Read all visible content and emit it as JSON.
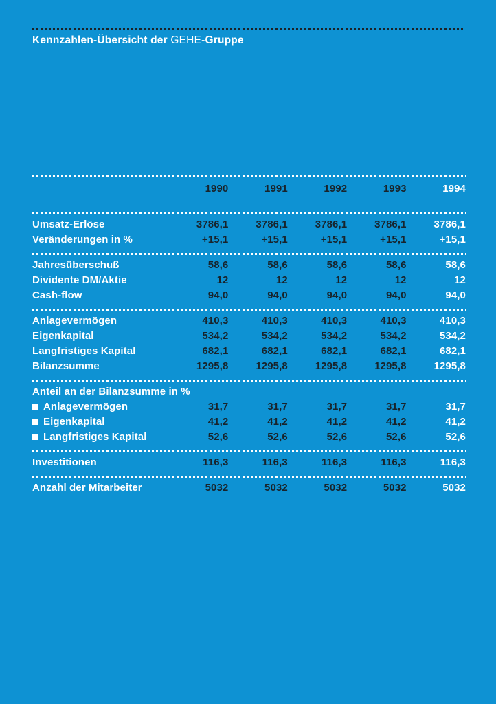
{
  "document": {
    "title": {
      "prefix": "Kennzahlen-Übersicht der ",
      "brand": "GEHE",
      "suffix": "-Gruppe"
    }
  },
  "colors": {
    "background": "#0e92d3",
    "ink_dark": "#18242c",
    "text_white": "#ffffff"
  },
  "table": {
    "years": [
      "1990",
      "1991",
      "1992",
      "1993",
      "1994"
    ],
    "sections": [
      {
        "rows": [
          {
            "label": "Umsatz-Erlöse",
            "values": [
              "3786,1",
              "3786,1",
              "3786,1",
              "3786,1",
              "3786,1"
            ]
          },
          {
            "label": "Veränderungen in %",
            "values": [
              "+15,1",
              "+15,1",
              "+15,1",
              "+15,1",
              "+15,1"
            ]
          }
        ]
      },
      {
        "rows": [
          {
            "label": "Jahresüberschuß",
            "values": [
              "58,6",
              "58,6",
              "58,6",
              "58,6",
              "58,6"
            ]
          },
          {
            "label": "Dividente DM/Aktie",
            "values": [
              "12",
              "12",
              "12",
              "12",
              "12"
            ]
          },
          {
            "label": "Cash-flow",
            "values": [
              "94,0",
              "94,0",
              "94,0",
              "94,0",
              "94,0"
            ]
          }
        ]
      },
      {
        "rows": [
          {
            "label": "Anlagevermögen",
            "values": [
              "410,3",
              "410,3",
              "410,3",
              "410,3",
              "410,3"
            ]
          },
          {
            "label": "Eigenkapital",
            "values": [
              "534,2",
              "534,2",
              "534,2",
              "534,2",
              "534,2"
            ]
          },
          {
            "label": "Langfristiges Kapital",
            "values": [
              "682,1",
              "682,1",
              "682,1",
              "682,1",
              "682,1"
            ]
          },
          {
            "label": "Bilanzsumme",
            "values": [
              "1295,8",
              "1295,8",
              "1295,8",
              "1295,8",
              "1295,8"
            ]
          }
        ]
      },
      {
        "rows": [
          {
            "label": "Anteil an der Bilanzsumme in %",
            "values": [
              "",
              "",
              "",
              "",
              ""
            ]
          },
          {
            "label": "Anlagevermögen",
            "bullet": true,
            "values": [
              "31,7",
              "31,7",
              "31,7",
              "31,7",
              "31,7"
            ]
          },
          {
            "label": "Eigenkapital",
            "bullet": true,
            "values": [
              "41,2",
              "41,2",
              "41,2",
              "41,2",
              "41,2"
            ]
          },
          {
            "label": "Langfristiges Kapital",
            "bullet": true,
            "values": [
              "52,6",
              "52,6",
              "52,6",
              "52,6",
              "52,6"
            ]
          }
        ]
      },
      {
        "rows": [
          {
            "label": "Investitionen",
            "values": [
              "116,3",
              "116,3",
              "116,3",
              "116,3",
              "116,3"
            ]
          }
        ]
      },
      {
        "rows": [
          {
            "label": "Anzahl der Mitarbeiter",
            "values": [
              "5032",
              "5032",
              "5032",
              "5032",
              "5032"
            ]
          }
        ]
      }
    ]
  }
}
